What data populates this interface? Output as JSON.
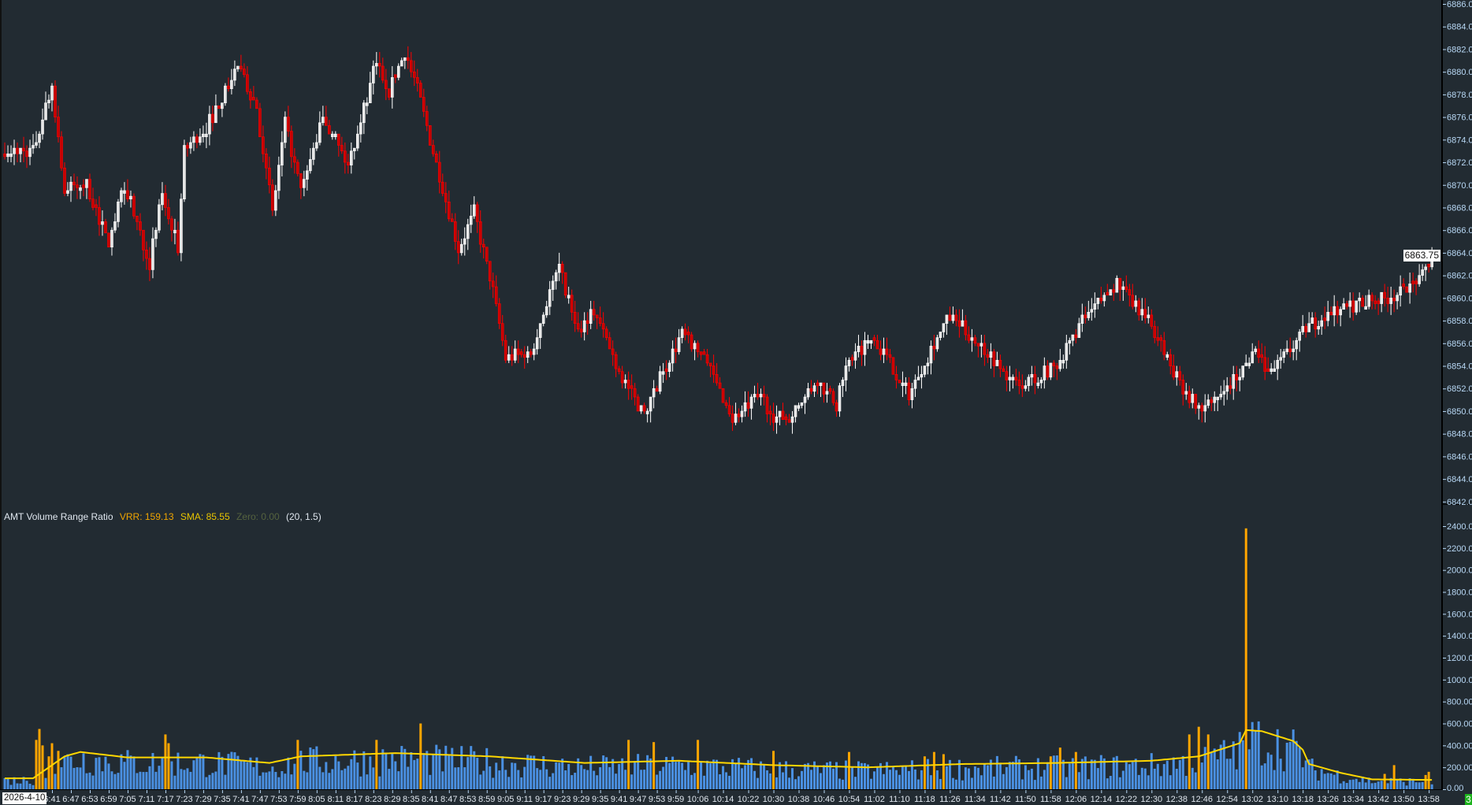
{
  "indicator": {
    "name": "AMT Volume Range Ratio",
    "vrr_label": "VRR: 159.13",
    "sma_label": "SMA: 85.55",
    "zero_label": "Zero: 0.00",
    "params": "(20, 1.5)"
  },
  "date_label": "2026-4-10",
  "status_badge": "3",
  "colors": {
    "background": "#222b32",
    "up_candle": "#ffffff",
    "down_candle": "#ff0000",
    "volume_normal": "#4a90e2",
    "volume_high": "#ffa500",
    "sma_line": "#ffd700",
    "axis_text": "#b8d8f5"
  },
  "chart_data": [
    {
      "type": "candlestick",
      "interval_minutes": 1,
      "ylim": [
        6842,
        6886
      ],
      "y_ticks": [
        "6886.00",
        "6884.00",
        "6882.00",
        "6880.00",
        "6878.00",
        "6876.00",
        "6874.00",
        "6872.00",
        "6870.00",
        "6868.00",
        "6866.00",
        "6864.00",
        "6862.00",
        "6860.00",
        "6858.00",
        "6856.00",
        "6854.00",
        "6852.00",
        "6850.00",
        "6848.00",
        "6846.00",
        "6844.00",
        "6842.00"
      ],
      "last_price": "6863.75",
      "close_path": [
        [
          "6:35",
          6873.0
        ],
        [
          "6:41",
          6878.8
        ],
        [
          "6:45",
          6869.5
        ],
        [
          "6:52",
          6870.1
        ],
        [
          "6:59",
          6864.7
        ],
        [
          "7:04",
          6870.1
        ],
        [
          "7:12",
          6863.0
        ],
        [
          "7:16",
          6869.3
        ],
        [
          "7:21",
          6864.3
        ],
        [
          "7:23",
          6873.0
        ],
        [
          "7:30",
          6875.1
        ],
        [
          "7:40",
          6880.5
        ],
        [
          "7:46",
          6876.8
        ],
        [
          "7:51",
          6867.6
        ],
        [
          "7:55",
          6875.5
        ],
        [
          "8:00",
          6869.3
        ],
        [
          "8:07",
          6875.9
        ],
        [
          "8:15",
          6871.8
        ],
        [
          "8:24",
          6880.9
        ],
        [
          "8:28",
          6878.4
        ],
        [
          "8:33",
          6881.8
        ],
        [
          "8:37",
          6878.4
        ],
        [
          "8:45",
          6869.7
        ],
        [
          "8:50",
          6864.3
        ],
        [
          "8:55",
          6867.6
        ],
        [
          "9:01",
          6860.6
        ],
        [
          "9:05",
          6854.7
        ],
        [
          "9:13",
          6855.1
        ],
        [
          "9:19",
          6860.6
        ],
        [
          "9:22",
          6862.6
        ],
        [
          "9:28",
          6857.2
        ],
        [
          "9:33",
          6858.9
        ],
        [
          "9:42",
          6853.0
        ],
        [
          "9:49",
          6849.7
        ],
        [
          "9:57",
          6854.7
        ],
        [
          "10:01",
          6856.8
        ],
        [
          "10:08",
          6854.7
        ],
        [
          "10:17",
          6849.3
        ],
        [
          "10:26",
          6851.4
        ],
        [
          "10:29",
          6849.7
        ],
        [
          "10:35",
          6849.3
        ],
        [
          "10:44",
          6852.6
        ],
        [
          "10:50",
          6850.5
        ],
        [
          "10:53",
          6853.8
        ],
        [
          "11:01",
          6856.8
        ],
        [
          "11:08",
          6853.8
        ],
        [
          "11:13",
          6851.4
        ],
        [
          "11:20",
          6855.5
        ],
        [
          "11:26",
          6858.4
        ],
        [
          "11:37",
          6855.5
        ],
        [
          "11:43",
          6853.4
        ],
        [
          "11:48",
          6852.2
        ],
        [
          "11:59",
          6853.8
        ],
        [
          "12:08",
          6857.9
        ],
        [
          "12:19",
          6861.3
        ],
        [
          "12:24",
          6859.6
        ],
        [
          "12:30",
          6857.6
        ],
        [
          "12:38",
          6853.0
        ],
        [
          "12:45",
          6850.1
        ],
        [
          "12:52",
          6851.4
        ],
        [
          "12:59",
          6853.8
        ],
        [
          "13:03",
          6855.5
        ],
        [
          "13:07",
          6853.0
        ],
        [
          "13:13",
          6855.1
        ],
        [
          "13:20",
          6857.6
        ],
        [
          "13:28",
          6858.9
        ],
        [
          "13:36",
          6859.6
        ],
        [
          "13:45",
          6860.1
        ],
        [
          "13:54",
          6860.9
        ],
        [
          "13:59",
          6863.75
        ]
      ]
    },
    {
      "type": "bar",
      "title": "AMT Volume Range Ratio",
      "ylim": [
        0,
        2400
      ],
      "y_ticks": [
        "2400.00",
        "2200.00",
        "2000.00",
        "1800.00",
        "1600.00",
        "1400.00",
        "1200.00",
        "1000.00",
        "800.00",
        "600.00",
        "400.00",
        "200.00",
        "0.00"
      ],
      "threshold_multiplier": 1.5,
      "sma_period": 20,
      "sma_path": [
        [
          "6:35",
          100
        ],
        [
          "6:45",
          300
        ],
        [
          "6:50",
          340
        ],
        [
          "7:05",
          290
        ],
        [
          "7:30",
          290
        ],
        [
          "7:50",
          240
        ],
        [
          "8:00",
          300
        ],
        [
          "8:30",
          330
        ],
        [
          "9:00",
          300
        ],
        [
          "9:30",
          240
        ],
        [
          "10:00",
          260
        ],
        [
          "10:30",
          220
        ],
        [
          "11:00",
          200
        ],
        [
          "11:30",
          230
        ],
        [
          "12:00",
          240
        ],
        [
          "12:30",
          260
        ],
        [
          "12:45",
          300
        ],
        [
          "12:58",
          420
        ],
        [
          "13:00",
          540
        ],
        [
          "13:05",
          530
        ],
        [
          "13:15",
          440
        ],
        [
          "13:18",
          360
        ],
        [
          "13:20",
          230
        ],
        [
          "13:30",
          150
        ],
        [
          "13:40",
          90
        ],
        [
          "13:58",
          85.55
        ]
      ],
      "high_bars": [
        [
          "6:36",
          450
        ],
        [
          "6:37",
          550
        ],
        [
          "6:38",
          400
        ],
        [
          "6:40",
          300
        ],
        [
          "6:41",
          420
        ],
        [
          "6:43",
          350
        ],
        [
          "7:17",
          500
        ],
        [
          "7:18",
          420
        ],
        [
          "7:59",
          450
        ],
        [
          "8:24",
          450
        ],
        [
          "8:38",
          600
        ],
        [
          "9:44",
          450
        ],
        [
          "9:52",
          430
        ],
        [
          "10:06",
          450
        ],
        [
          "10:30",
          350
        ],
        [
          "10:54",
          340
        ],
        [
          "11:18",
          300
        ],
        [
          "11:21",
          340
        ],
        [
          "11:24",
          320
        ],
        [
          "11:58",
          300
        ],
        [
          "12:01",
          380
        ],
        [
          "12:06",
          340
        ],
        [
          "12:42",
          500
        ],
        [
          "12:45",
          570
        ],
        [
          "12:48",
          500
        ],
        [
          "13:00",
          2380
        ],
        [
          "13:44",
          140
        ],
        [
          "13:47",
          220
        ],
        [
          "13:57",
          130
        ],
        [
          "13:58",
          159.13
        ]
      ],
      "x_ticks": [
        "6:41",
        "6:47",
        "6:53",
        "6:59",
        "7:05",
        "7:11",
        "7:17",
        "7:23",
        "7:29",
        "7:35",
        "7:41",
        "7:47",
        "7:53",
        "7:59",
        "8:05",
        "8:11",
        "8:17",
        "8:23",
        "8:29",
        "8:35",
        "8:41",
        "8:47",
        "8:53",
        "8:59",
        "9:05",
        "9:11",
        "9:17",
        "9:23",
        "9:29",
        "9:35",
        "9:41",
        "9:47",
        "9:53",
        "9:59",
        "10:06",
        "10:14",
        "10:22",
        "10:30",
        "10:38",
        "10:46",
        "10:54",
        "11:02",
        "11:10",
        "11:18",
        "11:26",
        "11:34",
        "11:42",
        "11:50",
        "11:58",
        "12:06",
        "12:14",
        "12:22",
        "12:30",
        "12:38",
        "12:46",
        "12:54",
        "13:02",
        "13:10",
        "13:18",
        "13:26",
        "13:34",
        "13:42",
        "13:50",
        "13:58"
      ]
    }
  ]
}
